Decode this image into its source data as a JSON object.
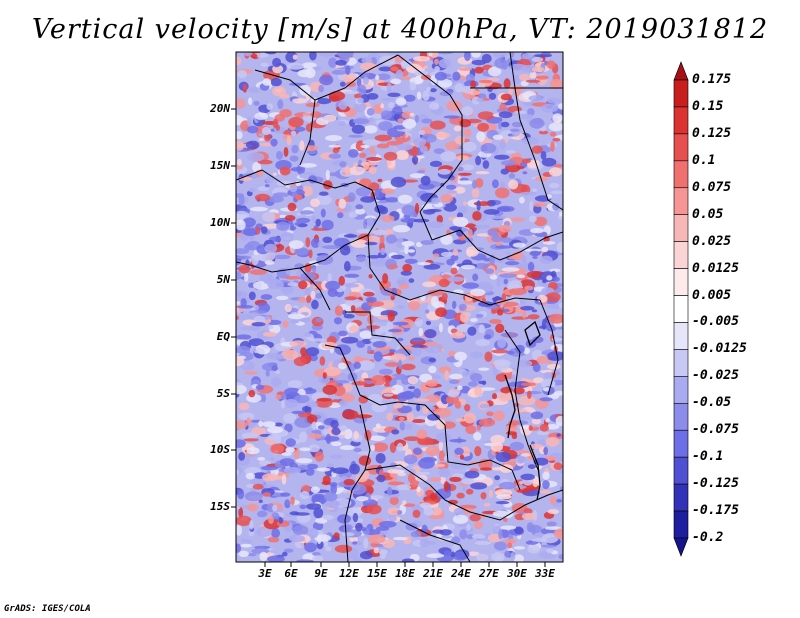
{
  "title": "Vertical velocity [m/s] at 400hPa, VT: 2019031812",
  "latitude_labels": [
    "20N",
    "15N",
    "10N",
    "5N",
    "EQ",
    "5S",
    "10S",
    "15S"
  ],
  "longitude_labels": [
    "3E",
    "6E",
    "9E",
    "12E",
    "15E",
    "18E",
    "21E",
    "24E",
    "27E",
    "30E",
    "33E"
  ],
  "colorbar": {
    "levels": [
      "0.175",
      "0.15",
      "0.125",
      "0.1",
      "0.075",
      "0.05",
      "0.025",
      "0.0125",
      "0.005",
      "-0.005",
      "-0.0125",
      "-0.025",
      "-0.05",
      "-0.075",
      "-0.1",
      "-0.125",
      "-0.175",
      "-0.2"
    ],
    "colors": [
      "#a50f15",
      "#c81e1e",
      "#dc3232",
      "#e65050",
      "#f07070",
      "#f59595",
      "#f8b7b7",
      "#fbd5d5",
      "#fdeaea",
      "#ffffff",
      "#e6e6fa",
      "#c8c8f5",
      "#aaaaf0",
      "#8c8ceb",
      "#6e6ee6",
      "#5050d2",
      "#3232b9",
      "#1e1ea0",
      "#14148c"
    ]
  },
  "credit": "GrADS: IGES/COLA"
}
